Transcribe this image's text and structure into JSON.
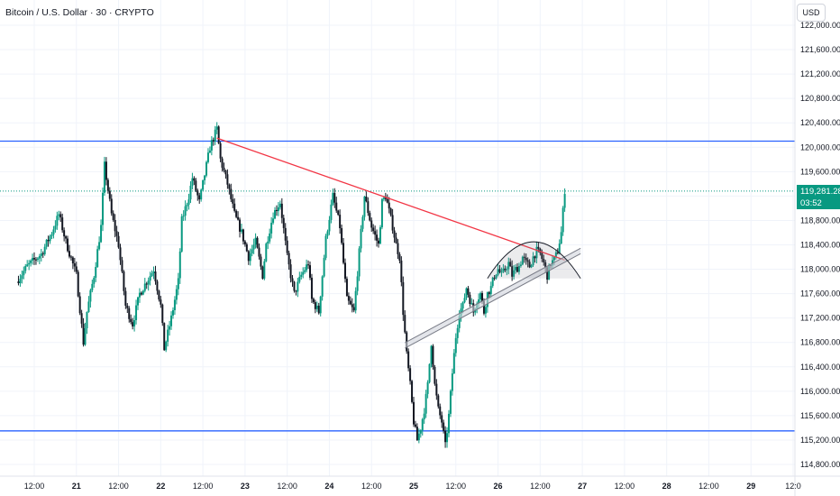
{
  "header": {
    "symbol_title": "Bitcoin / U.S. Dollar · 30 · CRYPTO",
    "currency_button": "USD"
  },
  "price_tag": {
    "price": "119,281.28",
    "countdown": "03:52"
  },
  "colors": {
    "up": "#089981",
    "down": "#131722",
    "horizontal_line": "#2962ff",
    "trendline": "#f23645",
    "current_price_line": "#089981",
    "channel": "#787b86"
  },
  "chart_data": {
    "type": "candlestick",
    "title": "Bitcoin / U.S. Dollar · 30 · CRYPTO",
    "currency": "USD",
    "timeframe": "30",
    "last_price": 119281.28,
    "y_range": [
      114700,
      122200
    ],
    "y_ticks": [
      122000,
      121600,
      121200,
      120800,
      120400,
      120000,
      119600,
      119200,
      118800,
      118400,
      118000,
      117600,
      117200,
      116800,
      116400,
      116000,
      115600,
      115200,
      114800
    ],
    "y_tick_labels": [
      "122,000.00",
      "121,600.00",
      "121,200.00",
      "120,800.00",
      "120,400.00",
      "120,000.00",
      "119,600.00",
      "119,200.00",
      "118,800.00",
      "118,400.00",
      "118,000.00",
      "117,600.00",
      "117,200.00",
      "116,800.00",
      "116,400.00",
      "116,000.00",
      "115,600.00",
      "115,200.00",
      "114,800.00"
    ],
    "x_tick_labels": [
      "12:00",
      "21",
      "12:00",
      "22",
      "12:00",
      "23",
      "12:00",
      "24",
      "12:00",
      "25",
      "12:00",
      "26",
      "12:00",
      "27",
      "12:00",
      "28",
      "12:00",
      "29",
      "12:0"
    ],
    "x_tick_bold": [
      false,
      true,
      false,
      true,
      false,
      true,
      false,
      true,
      false,
      true,
      false,
      true,
      false,
      true,
      false,
      true,
      false,
      true,
      false
    ],
    "x_hours_from_jul20_00": [
      12,
      24,
      36,
      48,
      60,
      72,
      84,
      96,
      108,
      120,
      132,
      144,
      156,
      168,
      180,
      192,
      204,
      216,
      228
    ],
    "price_path": [
      [
        7,
        117800
      ],
      [
        10,
        118050
      ],
      [
        14,
        118250
      ],
      [
        17,
        118600
      ],
      [
        19,
        118900
      ],
      [
        21,
        118450
      ],
      [
        24,
        117900
      ],
      [
        26,
        116800
      ],
      [
        27,
        117300
      ],
      [
        29,
        117900
      ],
      [
        31,
        118700
      ],
      [
        32,
        119700
      ],
      [
        34,
        118900
      ],
      [
        36,
        118400
      ],
      [
        38,
        117400
      ],
      [
        40,
        117100
      ],
      [
        42,
        117600
      ],
      [
        44,
        117800
      ],
      [
        46,
        118000
      ],
      [
        48,
        117400
      ],
      [
        49,
        116700
      ],
      [
        51,
        117200
      ],
      [
        53,
        117800
      ],
      [
        54,
        118800
      ],
      [
        56,
        119200
      ],
      [
        57,
        119500
      ],
      [
        59,
        119100
      ],
      [
        61,
        119700
      ],
      [
        62,
        120000
      ],
      [
        64,
        120300
      ],
      [
        65,
        119800
      ],
      [
        67,
        119400
      ],
      [
        69,
        118900
      ],
      [
        71,
        118600
      ],
      [
        73,
        118200
      ],
      [
        75,
        118450
      ],
      [
        77,
        117900
      ],
      [
        78,
        118400
      ],
      [
        80,
        118900
      ],
      [
        82,
        119100
      ],
      [
        84,
        118200
      ],
      [
        86,
        117600
      ],
      [
        88,
        117900
      ],
      [
        90,
        118100
      ],
      [
        91,
        117500
      ],
      [
        93,
        117300
      ],
      [
        95,
        118500
      ],
      [
        97,
        119200
      ],
      [
        99,
        118700
      ],
      [
        101,
        117500
      ],
      [
        103,
        117300
      ],
      [
        105,
        118600
      ],
      [
        106,
        119200
      ],
      [
        108,
        118700
      ],
      [
        110,
        118400
      ],
      [
        111,
        119100
      ],
      [
        112,
        119200
      ],
      [
        114,
        118700
      ],
      [
        115,
        118400
      ],
      [
        116,
        118200
      ],
      [
        117,
        117300
      ],
      [
        118,
        116600
      ],
      [
        119,
        116100
      ],
      [
        120,
        115500
      ],
      [
        121,
        115200
      ],
      [
        122,
        115400
      ],
      [
        123,
        115700
      ],
      [
        124,
        116100
      ],
      [
        125,
        116800
      ],
      [
        126,
        116100
      ],
      [
        127,
        115700
      ],
      [
        128,
        115500
      ],
      [
        129,
        115100
      ],
      [
        130,
        115600
      ],
      [
        131,
        116300
      ],
      [
        132,
        116900
      ],
      [
        133,
        117300
      ],
      [
        134,
        117400
      ],
      [
        135,
        117700
      ],
      [
        136,
        117500
      ],
      [
        137,
        117300
      ],
      [
        138,
        117500
      ],
      [
        139,
        117600
      ],
      [
        140,
        117300
      ],
      [
        141,
        117600
      ],
      [
        142,
        117700
      ],
      [
        143,
        117900
      ],
      [
        144,
        118000
      ],
      [
        145,
        117900
      ],
      [
        146,
        118000
      ],
      [
        147,
        118100
      ],
      [
        148,
        117900
      ],
      [
        149,
        118000
      ],
      [
        150,
        118050
      ],
      [
        151,
        118200
      ],
      [
        152,
        118100
      ],
      [
        153,
        118050
      ],
      [
        154,
        118200
      ],
      [
        155,
        118300
      ],
      [
        156,
        118250
      ],
      [
        157,
        118100
      ],
      [
        158,
        117900
      ],
      [
        159,
        118100
      ],
      [
        160,
        118150
      ],
      [
        161,
        118300
      ],
      [
        162,
        118600
      ],
      [
        163,
        119300
      ]
    ],
    "annotations": {
      "horizontal_lines": [
        120100,
        115350
      ],
      "current_price_line": 119281.28,
      "trendline": {
        "from": [
          64,
          120150
        ],
        "to": [
          163,
          118150
        ]
      },
      "rising_channel": {
        "from": [
          117.5,
          116750
        ],
        "to": [
          167.5,
          118300
        ]
      },
      "rounded_top_arc": {
        "from": [
          141,
          117850
        ],
        "peak": [
          151.5,
          118450
        ],
        "to": [
          167.5,
          117850
        ]
      }
    }
  }
}
